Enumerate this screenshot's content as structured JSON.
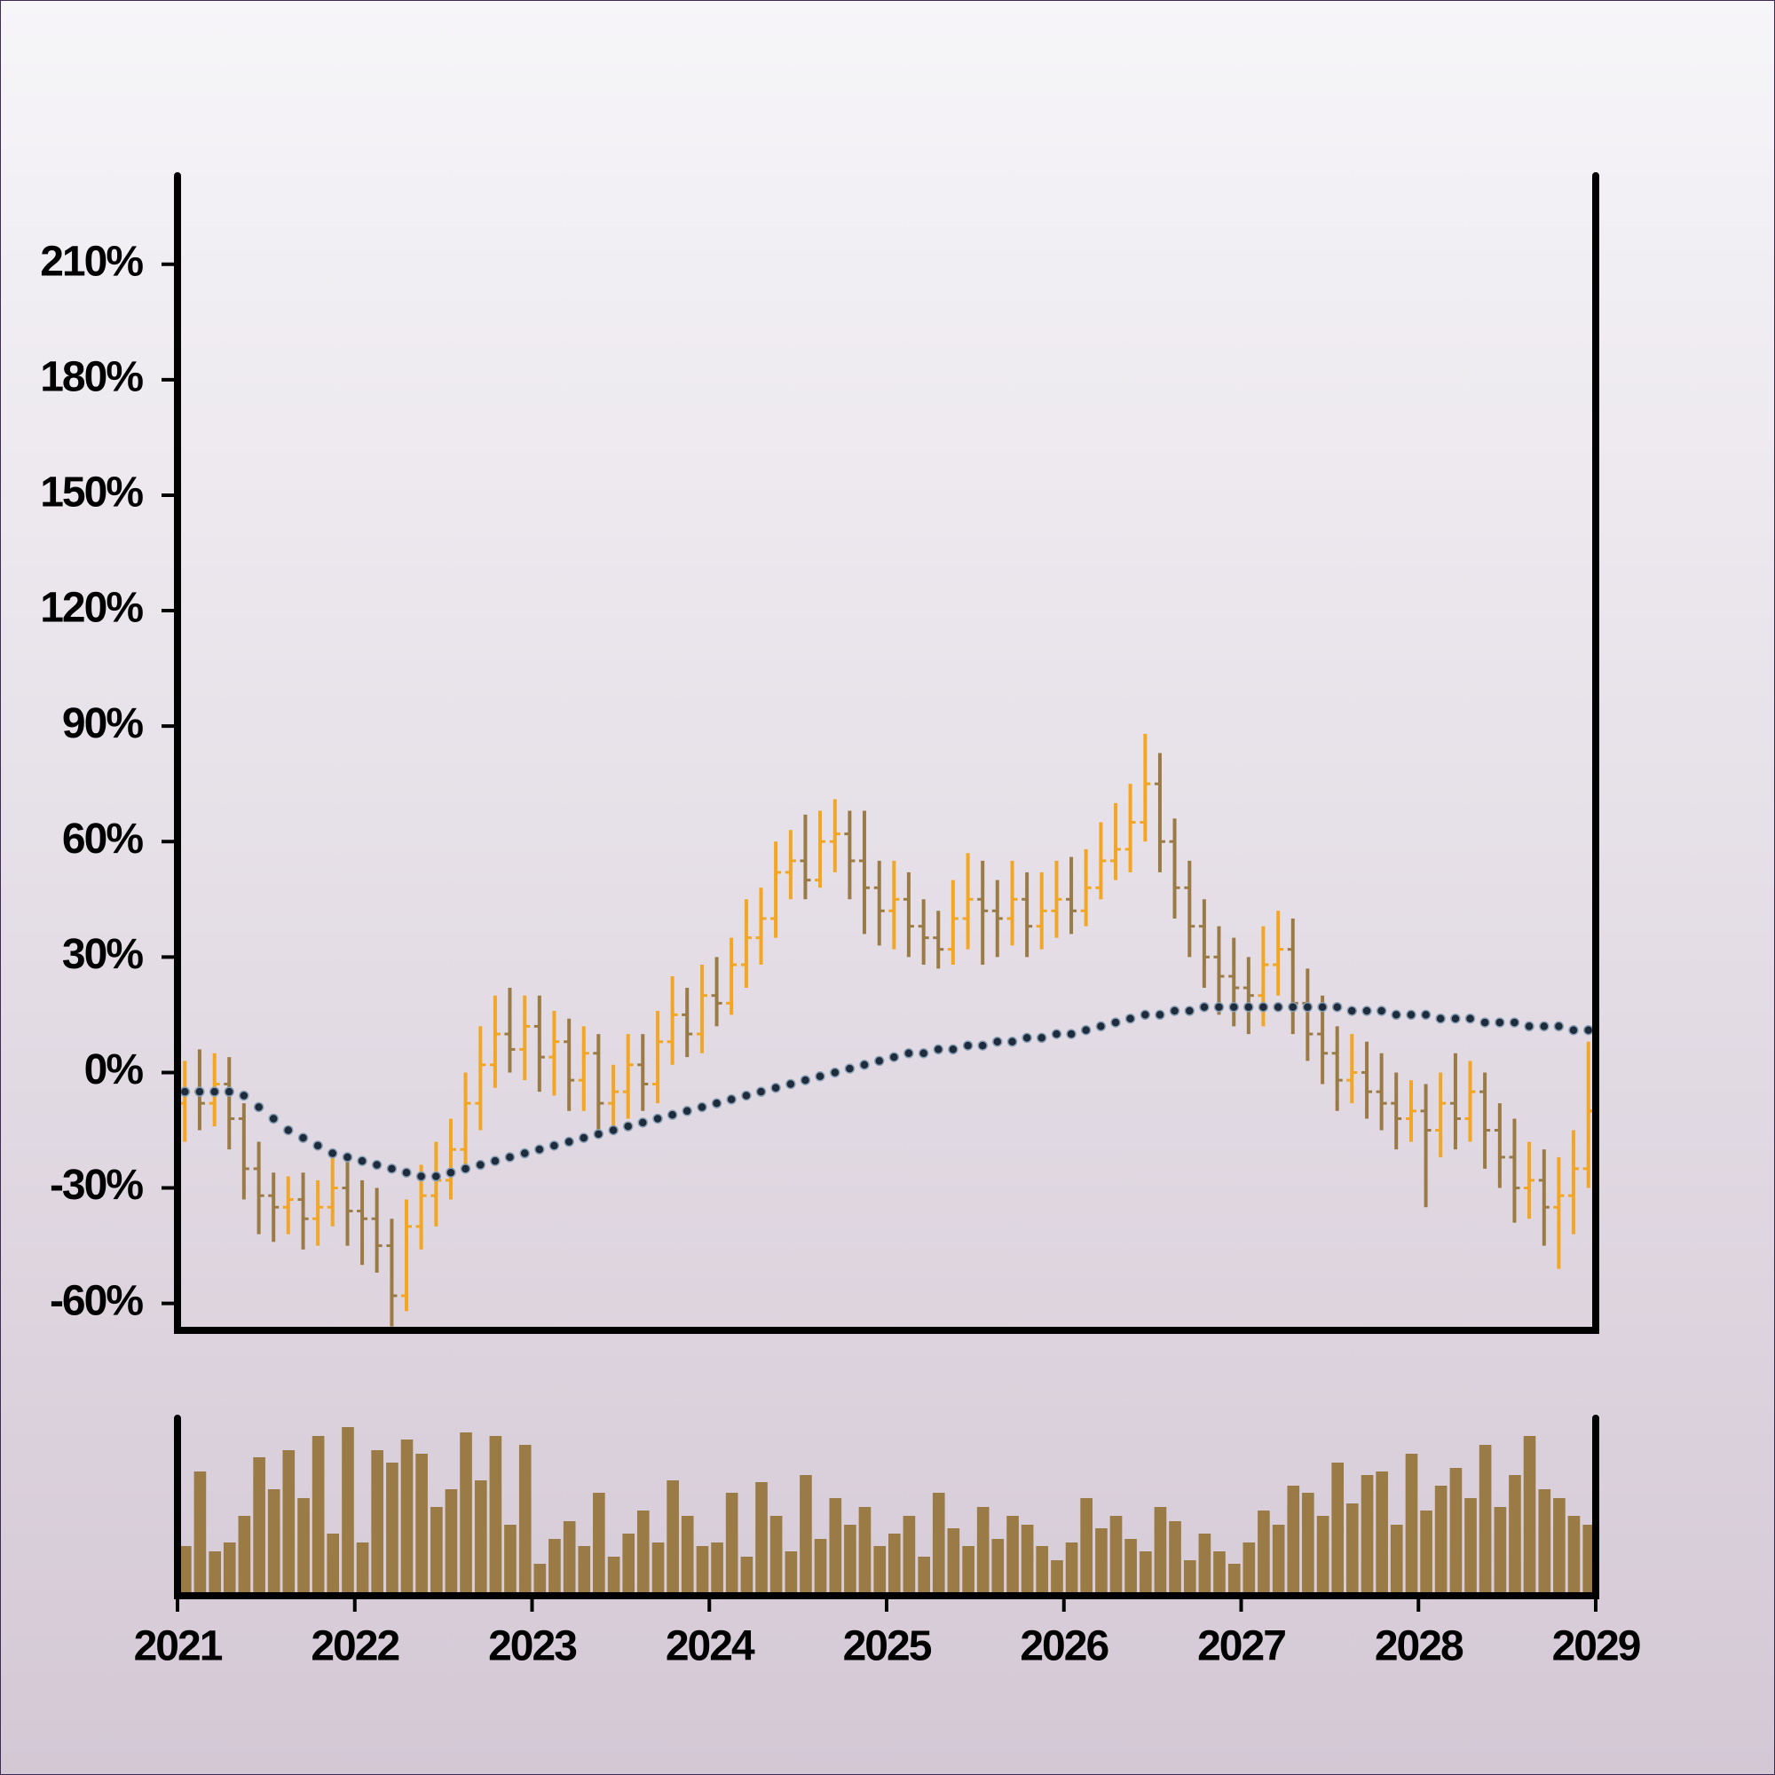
{
  "chart_data": {
    "type": "ohlc",
    "x": [
      2021,
      2021.083,
      2021.167,
      2021.25,
      2021.333,
      2021.417,
      2021.5,
      2021.583,
      2021.667,
      2021.75,
      2021.833,
      2021.917,
      2022,
      2022.083,
      2022.167,
      2022.25,
      2022.333,
      2022.417,
      2022.5,
      2022.583,
      2022.667,
      2022.75,
      2022.833,
      2022.917,
      2023,
      2023.083,
      2023.167,
      2023.25,
      2023.333,
      2023.417,
      2023.5,
      2023.583,
      2023.667,
      2023.75,
      2023.833,
      2023.917,
      2024,
      2024.083,
      2024.167,
      2024.25,
      2024.333,
      2024.417,
      2024.5,
      2024.583,
      2024.667,
      2024.75,
      2024.833,
      2024.917,
      2025,
      2025.083,
      2025.167,
      2025.25,
      2025.333,
      2025.417,
      2025.5,
      2025.583,
      2025.667,
      2025.75,
      2025.833,
      2025.917,
      2026,
      2026.083,
      2026.167,
      2026.25,
      2026.333,
      2026.417,
      2026.5,
      2026.583,
      2026.667,
      2026.75,
      2026.833,
      2026.917,
      2027,
      2027.083,
      2027.167,
      2027.25,
      2027.333,
      2027.417,
      2027.5,
      2027.583,
      2027.667,
      2027.75,
      2027.833,
      2027.917,
      2028,
      2028.083,
      2028.167,
      2028.25,
      2028.333,
      2028.417,
      2028.5,
      2028.583,
      2028.667,
      2028.75,
      2028.833,
      2028.917
    ],
    "open": [
      -8,
      -5,
      -8,
      -3,
      -12,
      -25,
      -32,
      -35,
      -33,
      -38,
      -35,
      -30,
      -36,
      -38,
      -45,
      -58,
      -40,
      -32,
      -28,
      -20,
      -8,
      2,
      10,
      6,
      12,
      4,
      8,
      -2,
      5,
      -8,
      -5,
      2,
      -3,
      8,
      15,
      10,
      20,
      18,
      28,
      35,
      40,
      52,
      55,
      50,
      60,
      62,
      55,
      48,
      42,
      45,
      38,
      35,
      32,
      40,
      45,
      42,
      40,
      45,
      38,
      42,
      45,
      42,
      48,
      55,
      58,
      65,
      75,
      60,
      48,
      38,
      30,
      25,
      22,
      20,
      28,
      32,
      18,
      10,
      5,
      -2,
      0,
      -5,
      -8,
      -12,
      -10,
      -15,
      -8,
      -12,
      -5,
      -15,
      -22,
      -30,
      -28,
      -35,
      -32,
      -25
    ],
    "high": [
      3,
      6,
      5,
      4,
      -8,
      -18,
      -26,
      -27,
      -26,
      -28,
      -22,
      -23,
      -28,
      -30,
      -38,
      -33,
      -24,
      -18,
      -12,
      0,
      12,
      20,
      22,
      20,
      20,
      16,
      14,
      12,
      10,
      2,
      10,
      10,
      16,
      25,
      22,
      28,
      30,
      35,
      45,
      48,
      60,
      63,
      67,
      68,
      71,
      68,
      68,
      55,
      55,
      52,
      45,
      42,
      50,
      57,
      55,
      50,
      55,
      52,
      52,
      55,
      56,
      58,
      65,
      70,
      75,
      88,
      83,
      66,
      55,
      45,
      38,
      35,
      30,
      38,
      42,
      40,
      27,
      20,
      12,
      10,
      8,
      5,
      0,
      -2,
      -3,
      0,
      5,
      3,
      0,
      -8,
      -12,
      -18,
      -20,
      -22,
      -15,
      8
    ],
    "low": [
      -18,
      -15,
      -14,
      -20,
      -33,
      -42,
      -44,
      -42,
      -46,
      -45,
      -40,
      -45,
      -50,
      -52,
      -66,
      -62,
      -46,
      -40,
      -33,
      -26,
      -15,
      -4,
      0,
      -2,
      -5,
      -6,
      -10,
      -10,
      -15,
      -16,
      -12,
      -10,
      -8,
      2,
      4,
      5,
      12,
      15,
      22,
      28,
      35,
      45,
      45,
      48,
      52,
      45,
      36,
      33,
      32,
      30,
      28,
      27,
      28,
      32,
      28,
      30,
      33,
      30,
      32,
      35,
      36,
      38,
      45,
      50,
      52,
      60,
      52,
      40,
      30,
      22,
      15,
      12,
      10,
      12,
      20,
      10,
      3,
      -3,
      -10,
      -8,
      -12,
      -15,
      -20,
      -18,
      -35,
      -22,
      -20,
      -18,
      -25,
      -30,
      -39,
      -38,
      -45,
      -51,
      -42,
      -30
    ],
    "close": [
      -5,
      -8,
      -3,
      -12,
      -25,
      -32,
      -35,
      -33,
      -38,
      -35,
      -30,
      -36,
      -38,
      -45,
      -58,
      -40,
      -32,
      -28,
      -20,
      -8,
      2,
      10,
      6,
      12,
      4,
      8,
      -2,
      5,
      -8,
      -5,
      2,
      -3,
      8,
      15,
      10,
      20,
      18,
      28,
      35,
      40,
      52,
      55,
      50,
      60,
      62,
      55,
      48,
      42,
      45,
      38,
      35,
      32,
      40,
      45,
      42,
      40,
      45,
      38,
      42,
      45,
      42,
      48,
      55,
      58,
      65,
      75,
      60,
      48,
      38,
      30,
      25,
      22,
      20,
      28,
      32,
      18,
      10,
      5,
      -2,
      0,
      -5,
      -8,
      -12,
      -10,
      -15,
      -8,
      -12,
      -5,
      -15,
      -22,
      -30,
      -28,
      -35,
      -32,
      -25,
      -10
    ],
    "up_color": "#f2a623",
    "down_color": "#9b7b45",
    "ma": {
      "values": [
        -5,
        -5,
        -5,
        -5,
        -6,
        -9,
        -12,
        -15,
        -17,
        -19,
        -21,
        -22,
        -23,
        -24,
        -25,
        -26,
        -27,
        -27,
        -26,
        -25,
        -24,
        -23,
        -22,
        -21,
        -20,
        -19,
        -18,
        -17,
        -16,
        -15,
        -14,
        -13,
        -12,
        -11,
        -10,
        -9,
        -8,
        -7,
        -6,
        -5,
        -4,
        -3,
        -2,
        -1,
        0,
        1,
        2,
        3,
        4,
        5,
        5,
        6,
        6,
        7,
        7,
        8,
        8,
        9,
        9,
        10,
        10,
        11,
        12,
        13,
        14,
        15,
        15,
        16,
        16,
        17,
        17,
        17,
        17,
        17,
        17,
        17,
        17,
        17,
        17,
        16,
        16,
        16,
        15,
        15,
        15,
        14,
        14,
        14,
        13,
        13,
        13,
        12,
        12,
        12,
        11,
        11
      ],
      "color": "#1e2b3c"
    },
    "volume": {
      "values": [
        28,
        70,
        25,
        30,
        45,
        78,
        60,
        82,
        55,
        90,
        35,
        95,
        30,
        82,
        75,
        88,
        80,
        50,
        60,
        92,
        65,
        90,
        40,
        85,
        18,
        32,
        42,
        28,
        58,
        22,
        35,
        48,
        30,
        65,
        45,
        28,
        30,
        58,
        22,
        64,
        45,
        25,
        68,
        32,
        55,
        40,
        50,
        28,
        35,
        45,
        22,
        58,
        38,
        28,
        50,
        32,
        45,
        40,
        28,
        20,
        30,
        55,
        38,
        45,
        32,
        25,
        50,
        42,
        20,
        35,
        25,
        18,
        30,
        48,
        40,
        62,
        58,
        45,
        75,
        52,
        68,
        70,
        40,
        80,
        48,
        62,
        72,
        55,
        85,
        50,
        68,
        90,
        60,
        55,
        45,
        40
      ],
      "color": "#9b7b45",
      "ylim": [
        0,
        100
      ]
    },
    "xlim": [
      2021,
      2029
    ],
    "xticks": [
      2021,
      2022,
      2023,
      2024,
      2025,
      2026,
      2027,
      2028,
      2029
    ],
    "ylim": [
      -67,
      233
    ],
    "yticks": [
      {
        "value": -60,
        "label": "-60%"
      },
      {
        "value": -30,
        "label": "-30%"
      },
      {
        "value": 0,
        "label": "0%"
      },
      {
        "value": 30,
        "label": "30%"
      },
      {
        "value": 60,
        "label": "60%"
      },
      {
        "value": 90,
        "label": "90%"
      },
      {
        "value": 120,
        "label": "120%"
      },
      {
        "value": 150,
        "label": "150%"
      },
      {
        "value": 180,
        "label": "180%"
      },
      {
        "value": 210,
        "label": "210%"
      }
    ]
  }
}
